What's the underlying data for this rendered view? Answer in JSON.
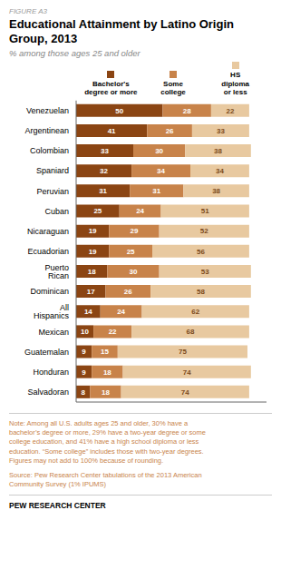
{
  "chart_data": {
    "type": "bar",
    "orientation": "horizontal",
    "stacked": true,
    "data_labels": true,
    "grid": false,
    "legend": "top",
    "tick_labels": "y",
    "figure_label": "FIGURE A3",
    "title": "Educational Attainment by Latino Origin\nGroup, 2013",
    "subtitle": "% among those ages 25 and older",
    "categories": [
      "Venezuelan",
      "Argentinean",
      "Colombian",
      "Spaniard",
      "Peruvian",
      "Cuban",
      "Nicaraguan",
      "Ecuadorian",
      "Puerto Rican",
      "Dominican",
      "All Hispanics",
      "Mexican",
      "Guatemalan",
      "Honduran",
      "Salvadoran"
    ],
    "series": [
      {
        "name": "Bachelor's\ndegree or more",
        "color": "#8B4513",
        "values": [
          50,
          41,
          33,
          32,
          31,
          25,
          19,
          19,
          18,
          17,
          14,
          10,
          9,
          9,
          8
        ]
      },
      {
        "name": "Some\ncollege",
        "color": "#C8834A",
        "values": [
          28,
          26,
          30,
          34,
          31,
          24,
          29,
          25,
          30,
          26,
          24,
          22,
          15,
          18,
          18
        ]
      },
      {
        "name": "HS\ndiploma\nor less",
        "color": "#E8C9A0",
        "values": [
          22,
          33,
          38,
          34,
          38,
          51,
          52,
          56,
          53,
          58,
          62,
          68,
          75,
          74,
          74
        ]
      }
    ],
    "xlim": [
      0,
      110
    ],
    "note": "Note: Among all U.S. adults ages 25 and older, 30% have a\nbachelor’s degree or more, 29% have a two-year degree or some\ncollege education, and 41% have a high school diploma or less\neducation. “Some college” includes those with two-year degrees.\nFigures may not add to 100% because of rounding.",
    "source": "Source: Pew Research Center tabulations of the 2013 American\nCommunity Survey (1% IPUMS)",
    "credit": "PEW RESEARCH CENTER",
    "note_color": "#C8834A",
    "background_color": "#FFFFFF"
  }
}
